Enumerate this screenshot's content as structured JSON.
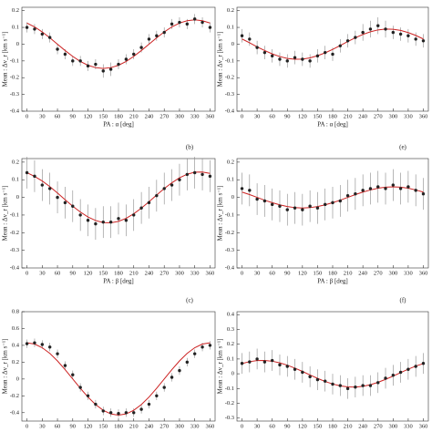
{
  "chart_data": [
    {
      "type": "scatter",
      "xlabel": "PA : α [deg]",
      "ylabel": "Mean : Δv_r [km s⁻¹]",
      "x": [
        0,
        15,
        30,
        45,
        60,
        75,
        90,
        105,
        120,
        135,
        150,
        165,
        180,
        195,
        210,
        225,
        240,
        255,
        270,
        285,
        300,
        315,
        330,
        345,
        360
      ],
      "values": [
        0.1,
        0.09,
        0.06,
        0.04,
        -0.03,
        -0.06,
        -0.1,
        -0.1,
        -0.13,
        -0.12,
        -0.16,
        -0.15,
        -0.12,
        -0.09,
        -0.06,
        -0.02,
        0.03,
        0.05,
        0.07,
        0.12,
        0.13,
        0.12,
        0.15,
        0.13,
        0.1
      ],
      "errors": [
        0.03,
        0.03,
        0.03,
        0.03,
        0.03,
        0.03,
        0.03,
        0.03,
        0.03,
        0.03,
        0.04,
        0.04,
        0.03,
        0.03,
        0.03,
        0.03,
        0.03,
        0.03,
        0.03,
        0.03,
        0.03,
        0.03,
        0.03,
        0.03,
        0.03
      ],
      "fit_values": [
        0.126,
        0.103,
        0.073,
        0.038,
        0,
        -0.038,
        -0.073,
        -0.103,
        -0.126,
        -0.14,
        -0.145,
        -0.14,
        -0.126,
        -0.103,
        -0.073,
        -0.038,
        0,
        0.038,
        0.073,
        0.103,
        0.126,
        0.14,
        0.145,
        0.14,
        0.126
      ],
      "color": "#222222",
      "fit_color": "#cc2222",
      "xlim": [
        -10,
        370
      ],
      "xticks": [
        0,
        30,
        60,
        90,
        120,
        150,
        180,
        210,
        240,
        270,
        300,
        330,
        360
      ],
      "ylim": [
        -0.4,
        0.22
      ],
      "yticks": [
        0.2,
        0.1,
        0,
        -0.1,
        -0.2,
        -0.3,
        -0.4
      ]
    },
    {
      "type": "scatter",
      "xlabel": "PA : α [deg]",
      "ylabel": "Mean : Δv_r [km s⁻¹]",
      "x": [
        0,
        15,
        30,
        45,
        60,
        75,
        90,
        105,
        120,
        135,
        150,
        165,
        180,
        195,
        210,
        225,
        240,
        255,
        270,
        285,
        300,
        315,
        330,
        345,
        360
      ],
      "values": [
        0.05,
        0.03,
        -0.02,
        -0.05,
        -0.07,
        -0.09,
        -0.1,
        -0.08,
        -0.09,
        -0.1,
        -0.07,
        -0.05,
        -0.06,
        -0.01,
        0.02,
        0.04,
        0.07,
        0.09,
        0.11,
        0.09,
        0.07,
        0.06,
        0.05,
        0.03,
        0.02
      ],
      "errors": [
        0.04,
        0.04,
        0.04,
        0.04,
        0.04,
        0.04,
        0.04,
        0.04,
        0.04,
        0.04,
        0.04,
        0.04,
        0.04,
        0.04,
        0.04,
        0.04,
        0.05,
        0.05,
        0.05,
        0.05,
        0.04,
        0.04,
        0.04,
        0.04,
        0.04
      ],
      "fit_values": [
        0.031,
        0.008,
        -0.016,
        -0.038,
        -0.058,
        -0.074,
        -0.085,
        -0.09,
        -0.089,
        -0.082,
        -0.069,
        -0.052,
        -0.031,
        -0.008,
        0.016,
        0.038,
        0.058,
        0.074,
        0.085,
        0.09,
        0.089,
        0.082,
        0.069,
        0.052,
        0.031
      ],
      "color": "#222222",
      "fit_color": "#cc2222",
      "xlim": [
        -10,
        370
      ],
      "xticks": [
        0,
        30,
        60,
        90,
        120,
        150,
        180,
        210,
        240,
        270,
        300,
        330,
        360
      ],
      "ylim": [
        -0.4,
        0.22
      ],
      "yticks": [
        0.2,
        0.1,
        0,
        -0.1,
        -0.2,
        -0.3,
        -0.4
      ]
    },
    {
      "type": "scatter",
      "panel_label": "(b)",
      "xlabel": "PA : β [deg]",
      "ylabel": "Mean : Δv_r [km s⁻¹]",
      "x": [
        0,
        15,
        30,
        45,
        60,
        75,
        90,
        105,
        120,
        135,
        150,
        165,
        180,
        195,
        210,
        225,
        240,
        255,
        270,
        285,
        300,
        315,
        330,
        345,
        360
      ],
      "values": [
        0.14,
        0.12,
        0.07,
        0.05,
        0.0,
        -0.03,
        -0.05,
        -0.1,
        -0.13,
        -0.15,
        -0.14,
        -0.14,
        -0.12,
        -0.13,
        -0.1,
        -0.06,
        -0.03,
        0.01,
        0.05,
        0.07,
        0.1,
        0.13,
        0.14,
        0.13,
        0.12
      ],
      "errors": [
        0.09,
        0.09,
        0.09,
        0.09,
        0.09,
        0.09,
        0.09,
        0.09,
        0.09,
        0.09,
        0.09,
        0.09,
        0.09,
        0.09,
        0.09,
        0.09,
        0.09,
        0.09,
        0.09,
        0.09,
        0.09,
        0.09,
        0.09,
        0.09,
        0.09
      ],
      "fit_values": [
        0.14,
        0.119,
        0.093,
        0.061,
        0.025,
        -0.013,
        -0.05,
        -0.083,
        -0.111,
        -0.131,
        -0.143,
        -0.144,
        -0.136,
        -0.119,
        -0.093,
        -0.061,
        -0.025,
        0.013,
        0.05,
        0.083,
        0.111,
        0.131,
        0.143,
        0.144,
        0.136
      ],
      "color": "#222222",
      "fit_color": "#cc2222",
      "xlim": [
        -10,
        370
      ],
      "xticks": [
        0,
        30,
        60,
        90,
        120,
        150,
        180,
        210,
        240,
        270,
        300,
        330,
        360
      ],
      "ylim": [
        -0.4,
        0.22
      ],
      "yticks": [
        0.2,
        0.1,
        0,
        -0.1,
        -0.2,
        -0.3,
        -0.4
      ]
    },
    {
      "type": "scatter",
      "panel_label": "(e)",
      "xlabel": "PA : β [deg]",
      "ylabel": "Mean : Δv_r [km s⁻¹]",
      "x": [
        0,
        15,
        30,
        45,
        60,
        75,
        90,
        105,
        120,
        135,
        150,
        165,
        180,
        195,
        210,
        225,
        240,
        255,
        270,
        285,
        300,
        315,
        330,
        345,
        360
      ],
      "values": [
        0.05,
        0.04,
        -0.01,
        -0.02,
        -0.04,
        -0.05,
        -0.07,
        -0.06,
        -0.07,
        -0.05,
        -0.06,
        -0.04,
        -0.03,
        -0.02,
        0.01,
        0.02,
        0.04,
        0.05,
        0.06,
        0.05,
        0.07,
        0.05,
        0.06,
        0.04,
        0.02
      ],
      "errors": [
        0.09,
        0.09,
        0.09,
        0.09,
        0.09,
        0.09,
        0.09,
        0.09,
        0.09,
        0.09,
        0.09,
        0.09,
        0.09,
        0.09,
        0.09,
        0.09,
        0.09,
        0.09,
        0.09,
        0.09,
        0.09,
        0.09,
        0.09,
        0.09,
        0.09
      ],
      "fit_values": [
        0.03,
        0.016,
        0,
        -0.016,
        -0.03,
        -0.042,
        -0.052,
        -0.058,
        -0.06,
        -0.058,
        -0.052,
        -0.042,
        -0.03,
        -0.016,
        0,
        0.016,
        0.03,
        0.042,
        0.052,
        0.058,
        0.06,
        0.058,
        0.052,
        0.042,
        0.03
      ],
      "color": "#222222",
      "fit_color": "#cc2222",
      "xlim": [
        -10,
        370
      ],
      "xticks": [
        0,
        30,
        60,
        90,
        120,
        150,
        180,
        210,
        240,
        270,
        300,
        330,
        360
      ],
      "ylim": [
        -0.4,
        0.22
      ],
      "yticks": [
        0.2,
        0.1,
        0,
        -0.1,
        -0.2,
        -0.3,
        -0.4
      ]
    },
    {
      "type": "scatter",
      "panel_label": "(c)",
      "ylabel": "Mean : Δv_r [km s⁻¹]",
      "x": [
        0,
        15,
        30,
        45,
        60,
        75,
        90,
        105,
        120,
        135,
        150,
        165,
        180,
        195,
        210,
        225,
        240,
        255,
        270,
        285,
        300,
        315,
        330,
        345,
        360
      ],
      "values": [
        0.42,
        0.43,
        0.41,
        0.38,
        0.3,
        0.16,
        0.05,
        -0.1,
        -0.2,
        -0.3,
        -0.38,
        -0.4,
        -0.41,
        -0.4,
        -0.4,
        -0.36,
        -0.3,
        -0.2,
        -0.1,
        0.02,
        0.1,
        0.2,
        0.3,
        0.38,
        0.4
      ],
      "errors": [
        0.05,
        0.05,
        0.05,
        0.05,
        0.05,
        0.05,
        0.05,
        0.05,
        0.05,
        0.05,
        0.05,
        0.05,
        0.05,
        0.05,
        0.05,
        0.05,
        0.05,
        0.05,
        0.05,
        0.05,
        0.05,
        0.05,
        0.05,
        0.05,
        0.05
      ],
      "fit_values": [
        0.43,
        0.415,
        0.372,
        0.304,
        0.215,
        0.111,
        0,
        -0.111,
        -0.215,
        -0.304,
        -0.372,
        -0.415,
        -0.43,
        -0.415,
        -0.372,
        -0.304,
        -0.215,
        -0.111,
        0,
        0.111,
        0.215,
        0.304,
        0.372,
        0.415,
        0.43
      ],
      "color": "#222222",
      "fit_color": "#cc2222",
      "xlim": [
        -10,
        370
      ],
      "xticks": [
        0,
        30,
        60,
        90,
        120,
        150,
        180,
        210,
        240,
        270,
        300,
        330,
        360
      ],
      "ylim": [
        -0.5,
        0.8
      ],
      "yticks": [
        0.8,
        0.6,
        0.4,
        0.2,
        0,
        -0.2,
        -0.4
      ]
    },
    {
      "type": "scatter",
      "panel_label": "(f)",
      "ylabel": "Mean : Δv_r [km s⁻¹]",
      "x": [
        0,
        15,
        30,
        45,
        60,
        75,
        90,
        105,
        120,
        135,
        150,
        165,
        180,
        195,
        210,
        225,
        240,
        255,
        270,
        285,
        300,
        315,
        330,
        345,
        360
      ],
      "values": [
        0.07,
        0.08,
        0.1,
        0.08,
        0.09,
        0.06,
        0.05,
        0.03,
        0.01,
        -0.02,
        -0.04,
        -0.05,
        -0.07,
        -0.08,
        -0.1,
        -0.09,
        -0.08,
        -0.08,
        -0.06,
        -0.03,
        -0.01,
        0.01,
        0.03,
        0.05,
        0.07
      ],
      "errors": [
        0.07,
        0.07,
        0.07,
        0.07,
        0.07,
        0.07,
        0.07,
        0.07,
        0.07,
        0.07,
        0.07,
        0.07,
        0.07,
        0.07,
        0.07,
        0.07,
        0.07,
        0.07,
        0.07,
        0.07,
        0.07,
        0.07,
        0.07,
        0.07,
        0.07
      ],
      "fit_values": [
        0.069,
        0.082,
        0.089,
        0.09,
        0.085,
        0.074,
        0.058,
        0.038,
        0.016,
        -0.008,
        -0.031,
        -0.052,
        -0.069,
        -0.082,
        -0.089,
        -0.09,
        -0.085,
        -0.074,
        -0.058,
        -0.038,
        -0.016,
        0.008,
        0.031,
        0.052,
        0.069
      ],
      "color": "#222222",
      "fit_color": "#cc2222",
      "xlim": [
        -10,
        370
      ],
      "xticks": [
        0,
        30,
        60,
        90,
        120,
        150,
        180,
        210,
        240,
        270,
        300,
        330,
        360
      ],
      "ylim": [
        -0.32,
        0.42
      ],
      "yticks": [
        0.4,
        0.3,
        0.2,
        0.1,
        0,
        -0.1,
        -0.2,
        -0.3
      ]
    }
  ]
}
